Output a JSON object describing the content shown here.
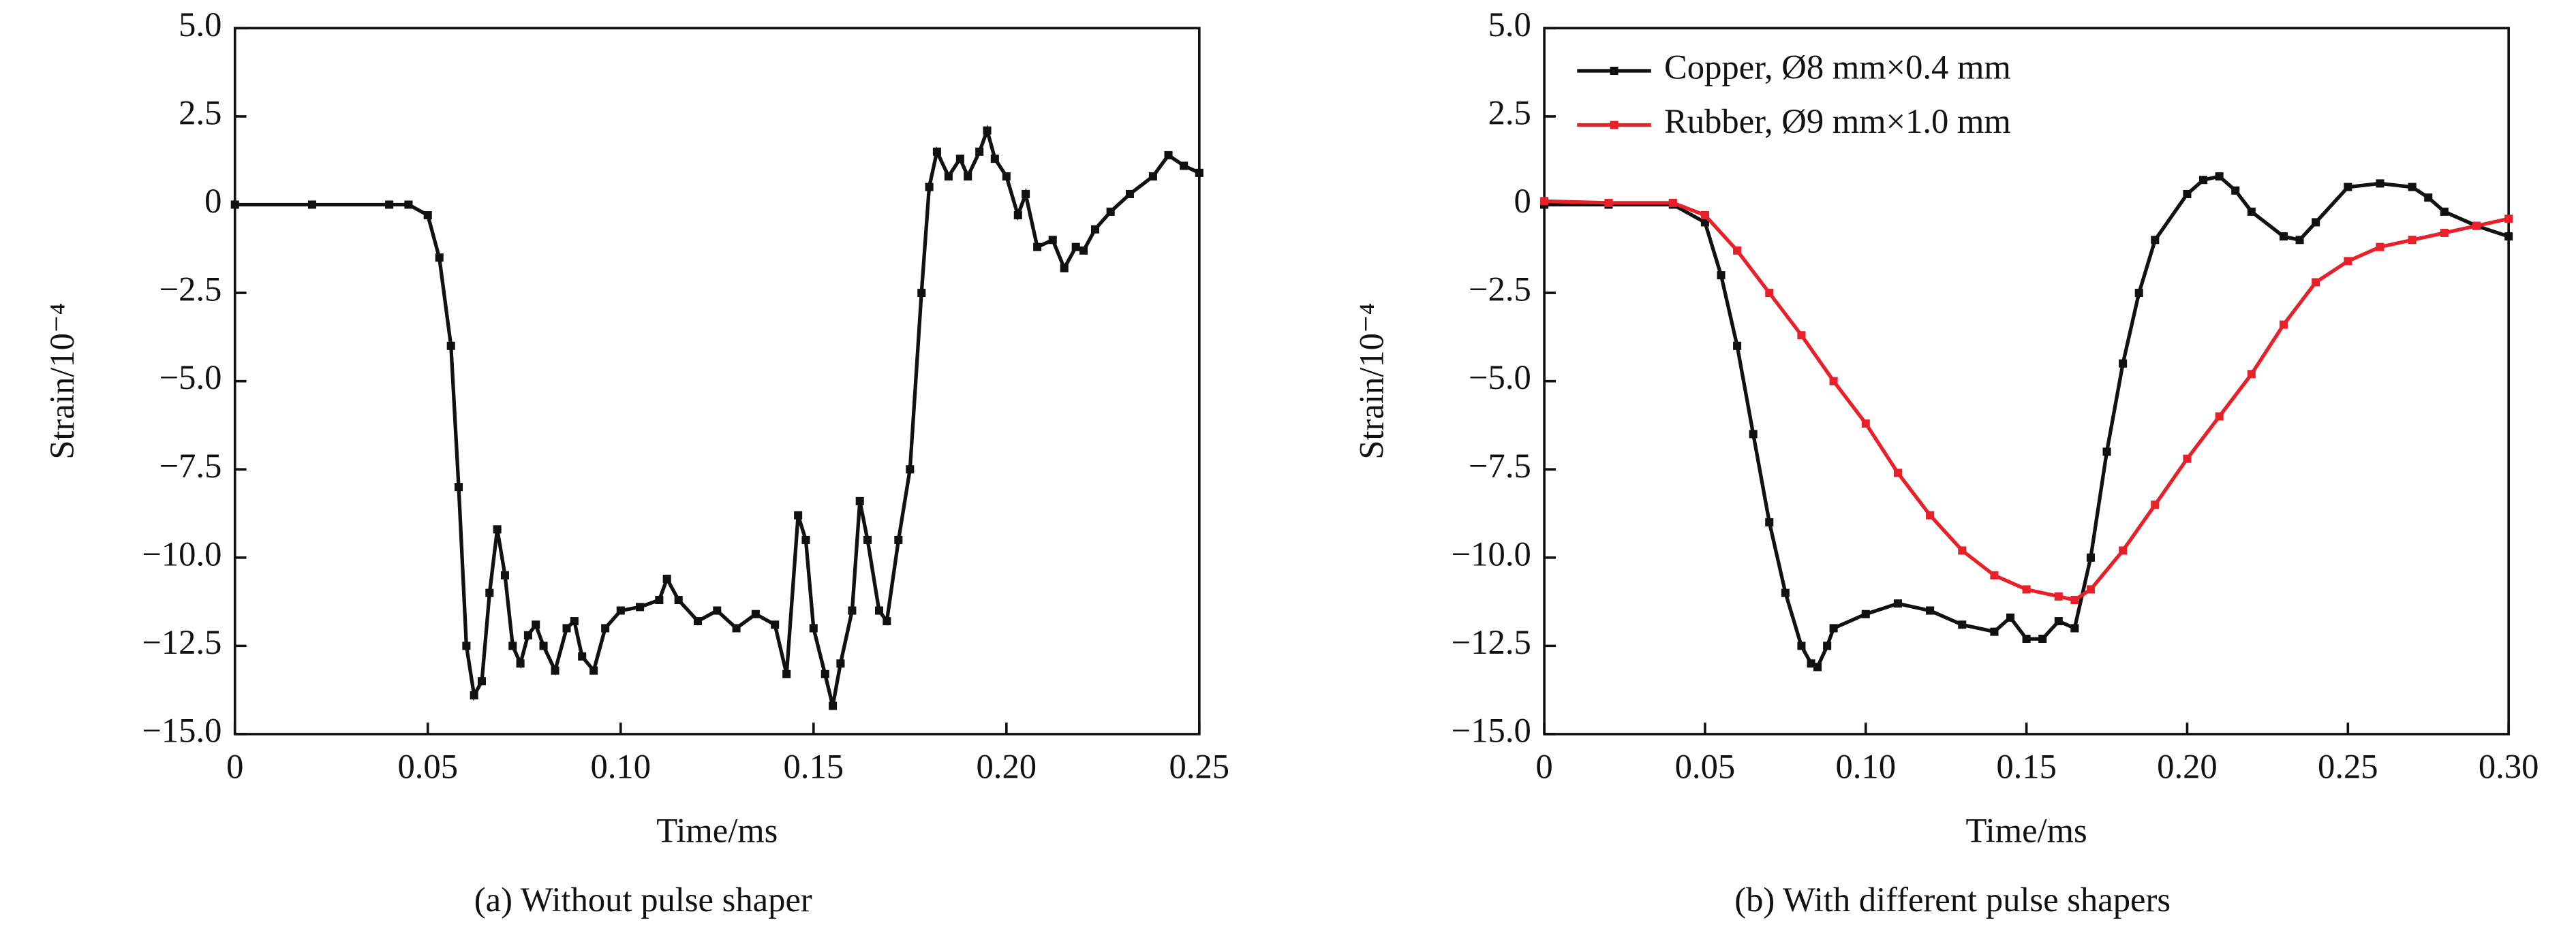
{
  "charts": [
    {
      "chart_data": {
        "type": "line",
        "xlabel": "Time/ms",
        "ylabel": "Strain/10⁻⁴",
        "caption": "(a) Without pulse shaper",
        "xlim": [
          0,
          0.25
        ],
        "ylim": [
          -15,
          5
        ],
        "xticks": [
          0,
          0.05,
          {
            "value": 0.1,
            "label": "0.10"
          },
          0.15,
          {
            "value": 0.2,
            "label": "0.20"
          },
          0.25
        ],
        "yticks": [
          {
            "value": 5,
            "label": "5.0"
          },
          2.5,
          0,
          {
            "value": -2.5,
            "label": "−2.5"
          },
          {
            "value": -5,
            "label": "−5.0"
          },
          {
            "value": -7.5,
            "label": "−7.5"
          },
          {
            "value": -10,
            "label": "−10.0"
          },
          {
            "value": -12.5,
            "label": "−12.5"
          },
          {
            "value": -15,
            "label": "−15.0"
          }
        ],
        "series": [
          {
            "color": "#111111",
            "x": [
              0,
              0.02,
              0.04,
              0.045,
              0.05,
              0.053,
              0.056,
              0.058,
              0.06,
              0.062,
              0.064,
              0.066,
              0.068,
              0.07,
              0.072,
              0.074,
              0.076,
              0.078,
              0.08,
              0.083,
              0.086,
              0.088,
              0.09,
              0.093,
              0.096,
              0.1,
              0.105,
              0.11,
              0.112,
              0.115,
              0.12,
              0.125,
              0.13,
              0.135,
              0.14,
              0.143,
              0.146,
              0.148,
              0.15,
              0.153,
              0.155,
              0.157,
              0.16,
              0.162,
              0.164,
              0.167,
              0.169,
              0.172,
              0.175,
              0.178,
              0.18,
              0.182,
              0.185,
              0.188,
              0.19,
              0.193,
              0.195,
              0.197,
              0.2,
              0.203,
              0.205,
              0.208,
              0.212,
              0.215,
              0.218,
              0.22,
              0.223,
              0.227,
              0.232,
              0.238,
              0.242,
              0.246,
              0.25
            ],
            "values": [
              0,
              0,
              0,
              0,
              -0.3,
              -1.5,
              -4,
              -8,
              -12.5,
              -13.9,
              -13.5,
              -11,
              -9.2,
              -10.5,
              -12.5,
              -13,
              -12.2,
              -11.9,
              -12.5,
              -13.2,
              -12,
              -11.8,
              -12.8,
              -13.2,
              -12,
              -11.5,
              -11.4,
              -11.2,
              -10.6,
              -11.2,
              -11.8,
              -11.5,
              -12,
              -11.6,
              -11.9,
              -13.3,
              -8.8,
              -9.5,
              -12,
              -13.3,
              -14.2,
              -13,
              -11.5,
              -8.4,
              -9.5,
              -11.5,
              -11.8,
              -9.5,
              -7.5,
              -2.5,
              0.5,
              1.5,
              0.8,
              1.3,
              0.8,
              1.5,
              2.1,
              1.3,
              0.8,
              -0.3,
              0.3,
              -1.2,
              -1,
              -1.8,
              -1.2,
              -1.3,
              -0.7,
              -0.2,
              0.3,
              0.8,
              1.4,
              1.1,
              0.9
            ]
          }
        ]
      }
    },
    {
      "chart_data": {
        "type": "line",
        "xlabel": "Time/ms",
        "ylabel": "Strain/10⁻⁴",
        "caption": "(b) With different pulse shapers",
        "xlim": [
          0,
          0.3
        ],
        "ylim": [
          -15,
          5
        ],
        "legend": "upper-left",
        "xticks": [
          0,
          0.05,
          {
            "value": 0.1,
            "label": "0.10"
          },
          0.15,
          {
            "value": 0.2,
            "label": "0.20"
          },
          0.25,
          {
            "value": 0.3,
            "label": "0.30"
          }
        ],
        "yticks": [
          {
            "value": 5,
            "label": "5.0"
          },
          2.5,
          0,
          {
            "value": -2.5,
            "label": "−2.5"
          },
          {
            "value": -5,
            "label": "−5.0"
          },
          {
            "value": -7.5,
            "label": "−7.5"
          },
          {
            "value": -10,
            "label": "−10.0"
          },
          {
            "value": -12.5,
            "label": "−12.5"
          },
          {
            "value": -15,
            "label": "−15.0"
          }
        ],
        "series": [
          {
            "name": "Copper, Ø8 mm×0.4 mm",
            "color": "#111111",
            "x": [
              0,
              0.02,
              0.04,
              0.05,
              0.055,
              0.06,
              0.065,
              0.07,
              0.075,
              0.08,
              0.083,
              0.085,
              0.088,
              0.09,
              0.1,
              0.11,
              0.12,
              0.13,
              0.14,
              0.145,
              0.15,
              0.155,
              0.16,
              0.165,
              0.17,
              0.175,
              0.18,
              0.185,
              0.19,
              0.2,
              0.205,
              0.21,
              0.215,
              0.22,
              0.23,
              0.235,
              0.24,
              0.25,
              0.26,
              0.27,
              0.275,
              0.28,
              0.29,
              0.3
            ],
            "values": [
              0,
              0,
              0,
              -0.5,
              -2,
              -4,
              -6.5,
              -9,
              -11,
              -12.5,
              -13,
              -13.1,
              -12.5,
              -12,
              -11.6,
              -11.3,
              -11.5,
              -11.9,
              -12.1,
              -11.7,
              -12.3,
              -12.3,
              -11.8,
              -12,
              -10,
              -7,
              -4.5,
              -2.5,
              -1,
              0.3,
              0.7,
              0.8,
              0.4,
              -0.2,
              -0.9,
              -1,
              -0.5,
              0.5,
              0.6,
              0.5,
              0.2,
              -0.2,
              -0.6,
              -0.9
            ]
          },
          {
            "name": "Rubber, Ø9 mm×1.0 mm",
            "color": "#e8202a",
            "x": [
              0,
              0.02,
              0.04,
              0.05,
              0.06,
              0.07,
              0.08,
              0.09,
              0.1,
              0.11,
              0.12,
              0.13,
              0.14,
              0.15,
              0.16,
              0.165,
              0.17,
              0.18,
              0.19,
              0.2,
              0.21,
              0.22,
              0.23,
              0.24,
              0.25,
              0.26,
              0.27,
              0.28,
              0.29,
              0.3
            ],
            "values": [
              0.1,
              0.05,
              0.05,
              -0.3,
              -1.3,
              -2.5,
              -3.7,
              -5,
              -6.2,
              -7.6,
              -8.8,
              -9.8,
              -10.5,
              -10.9,
              -11.1,
              -11.2,
              -10.9,
              -9.8,
              -8.5,
              -7.2,
              -6,
              -4.8,
              -3.4,
              -2.2,
              -1.6,
              -1.2,
              -1,
              -0.8,
              -0.6,
              -0.4
            ]
          }
        ]
      }
    }
  ]
}
